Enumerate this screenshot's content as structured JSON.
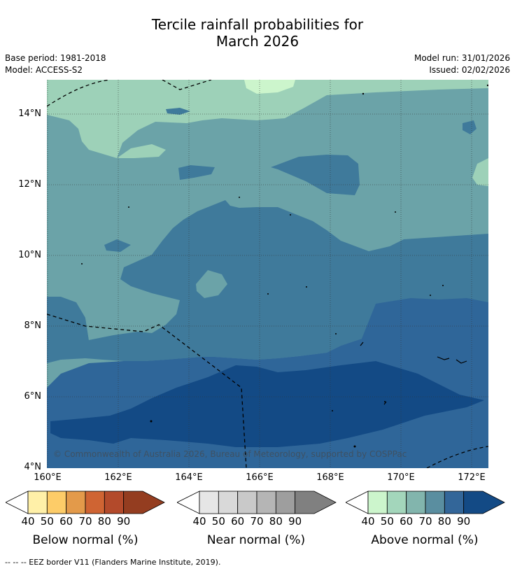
{
  "title_line1": "Tercile rainfall probabilities for",
  "title_line2": "March 2026",
  "base_period": "Base period: 1981-2018",
  "model": "Model: ACCESS-S2",
  "model_run": "Model run: 31/01/2026",
  "issued": "Issued: 02/02/2026",
  "copyright": "© Commonwealth of Australia 2026, Bureau of Meteorology, supported by COSPPac",
  "lat_ticks": [
    "14°N",
    "12°N",
    "10°N",
    "8°N",
    "6°N",
    "4°N"
  ],
  "lon_ticks": [
    "160°E",
    "162°E",
    "164°E",
    "166°E",
    "168°E",
    "170°E",
    "172°E"
  ],
  "colorbars": [
    {
      "title": "Below normal (%)",
      "labels": [
        "40",
        "50",
        "60",
        "70",
        "80",
        "90"
      ],
      "colors": [
        "#fff0a8",
        "#fdcc68",
        "#e39a4a",
        "#cf6433",
        "#b34a2b",
        "#943d20"
      ]
    },
    {
      "title": "Near normal (%)",
      "labels": [
        "40",
        "50",
        "60",
        "70",
        "80",
        "90"
      ],
      "colors": [
        "#e6e6e6",
        "#d9d9d9",
        "#c9c9c9",
        "#b5b5b5",
        "#9e9e9e",
        "#808080"
      ]
    },
    {
      "title": "Above normal (%)",
      "labels": [
        "40",
        "50",
        "60",
        "70",
        "80",
        "90"
      ],
      "colors": [
        "#ccf5cc",
        "#a3d6bb",
        "#82b5ad",
        "#5a8ea0",
        "#336699",
        "#134a85"
      ]
    }
  ],
  "footer": "--  --  -- EEZ border V11 (Flanders Marine Institute, 2019)."
}
